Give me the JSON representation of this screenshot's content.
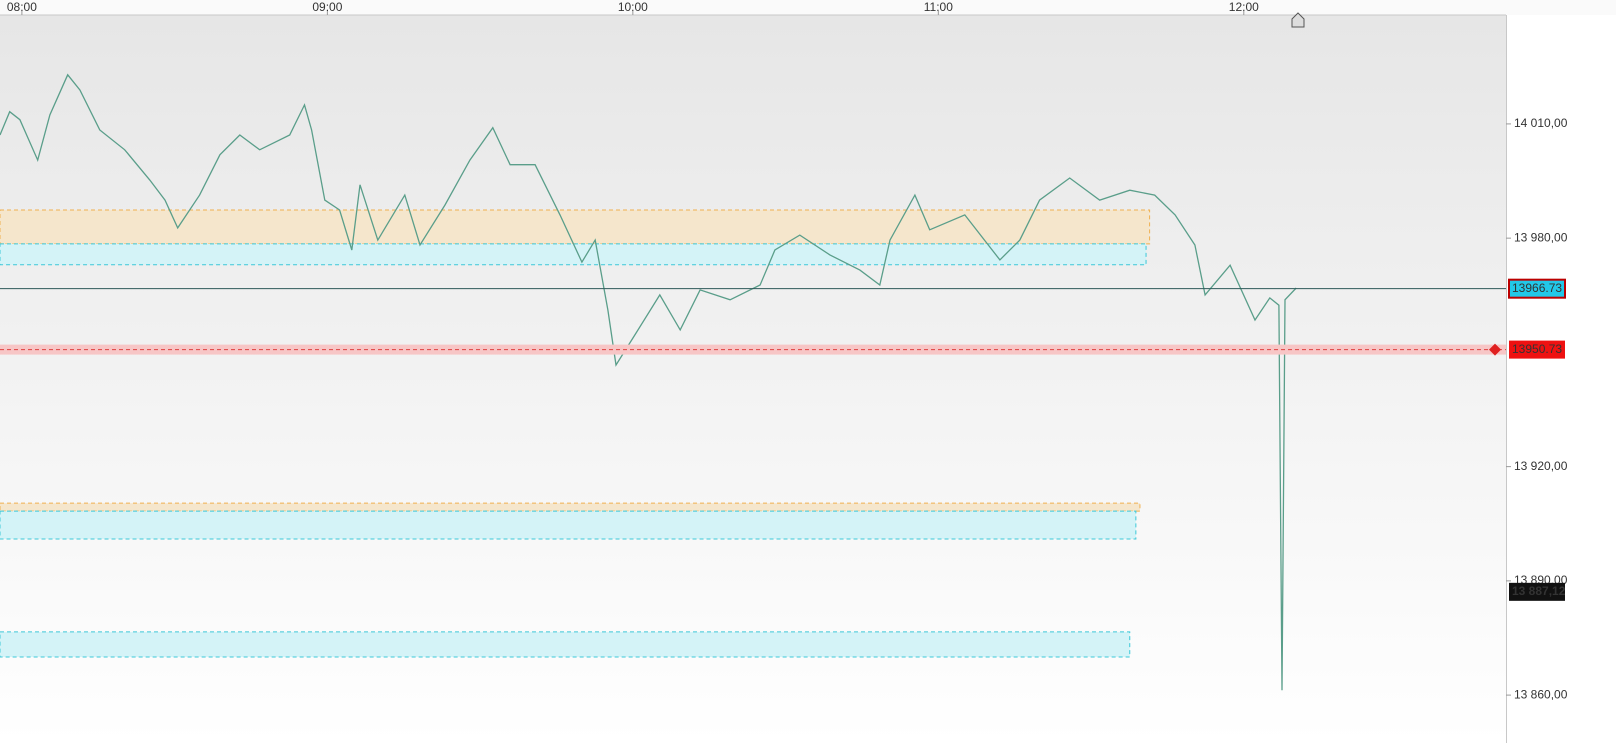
{
  "chart_data": {
    "type": "line",
    "xlim": [
      475.7,
      771.5
    ],
    "xticks": [
      {
        "value": 480,
        "label": "08:00"
      },
      {
        "value": 540,
        "label": "09:00"
      },
      {
        "value": 600,
        "label": "10:00"
      },
      {
        "value": 660,
        "label": "11:00"
      },
      {
        "value": 720,
        "label": "12:00"
      }
    ],
    "ylim": [
      13853.2,
      14038.6
    ],
    "yticks": [
      {
        "value": 14010,
        "label": "14 010,00"
      },
      {
        "value": 13980,
        "label": "13 980,00"
      },
      {
        "value": 13920,
        "label": "13 920,00"
      },
      {
        "value": 13890,
        "label": "13 890,00"
      },
      {
        "value": 13860,
        "label": "13 860,00"
      }
    ],
    "color": "#5a9e8a",
    "x": [
      475.7,
      477.6,
      479.6,
      483.1,
      485.5,
      489.0,
      491.4,
      495.3,
      500.2,
      505.1,
      508.1,
      510.6,
      514.9,
      518.9,
      522.8,
      526.7,
      532.6,
      535.5,
      536.9,
      539.5,
      542.4,
      544.8,
      546.4,
      549.9,
      555.2,
      558.2,
      563.1,
      568.0,
      572.5,
      575.9,
      580.8,
      585.7,
      590.0,
      592.6,
      595.1,
      596.7,
      600.4,
      605.3,
      609.3,
      613.2,
      619.1,
      625.0,
      627.9,
      632.8,
      638.7,
      644.6,
      648.5,
      650.5,
      655.4,
      658.3,
      665.2,
      672.1,
      676.0,
      679.9,
      685.8,
      691.7,
      697.6,
      702.5,
      706.5,
      710.4,
      712.4,
      717.3,
      722.2,
      725.1,
      726.9,
      727.5,
      728.1,
      730.3
    ],
    "values": [
      14007.1,
      14013.2,
      14011.1,
      14000.5,
      14012.4,
      14022.9,
      14018.9,
      14008.4,
      14003.2,
      13995.3,
      13990.0,
      13982.7,
      13991.3,
      14001.9,
      14007.1,
      14003.2,
      14007.1,
      14015.0,
      14008.4,
      13990.0,
      13987.4,
      13976.9,
      13994.0,
      13979.5,
      13991.3,
      13978.2,
      13988.7,
      14000.5,
      14009.0,
      13999.3,
      13999.3,
      13986.1,
      13973.7,
      13979.5,
      13961.1,
      13946.7,
      13954.6,
      13965.1,
      13955.9,
      13966.4,
      13963.8,
      13967.7,
      13976.9,
      13980.8,
      13975.6,
      13971.6,
      13967.7,
      13979.5,
      13991.3,
      13982.2,
      13986.1,
      13974.3,
      13979.5,
      13990.0,
      13995.8,
      13990.0,
      13992.6,
      13991.3,
      13986.1,
      13978.2,
      13965.1,
      13972.9,
      13958.5,
      13964.3,
      13962.4,
      13861.3,
      13963.8,
      13966.9
    ],
    "zones": [
      {
        "y": [
          13978.5,
          13987.4
        ],
        "x_end": 701.5,
        "color": "#f5e6cc",
        "border": "#f0b050"
      },
      {
        "y": [
          13973.0,
          13978.5
        ],
        "x_end": 700.8,
        "color": "#d4f3f7",
        "border": "#3cc8d8"
      },
      {
        "y": [
          13908.3,
          13910.4
        ],
        "x_end": 699.6,
        "color": "#f5e6cc",
        "border": "#f0b050"
      },
      {
        "y": [
          13901.0,
          13908.3
        ],
        "x_end": 698.8,
        "color": "#d4f3f7",
        "border": "#3cc8d8"
      },
      {
        "y": [
          13870.0,
          13876.6
        ],
        "x_end": 697.6,
        "color": "#d4f3f7",
        "border": "#3cc8d8"
      }
    ],
    "price_labels": [
      {
        "value": 13966.73,
        "color": "#22c8e8",
        "line": "#2e5a5a"
      },
      {
        "value": 13950.73,
        "color": "#ee1111",
        "line": "#e04040"
      },
      {
        "value": 13887.12,
        "label": "13 887,12",
        "color": "#111111"
      }
    ]
  }
}
